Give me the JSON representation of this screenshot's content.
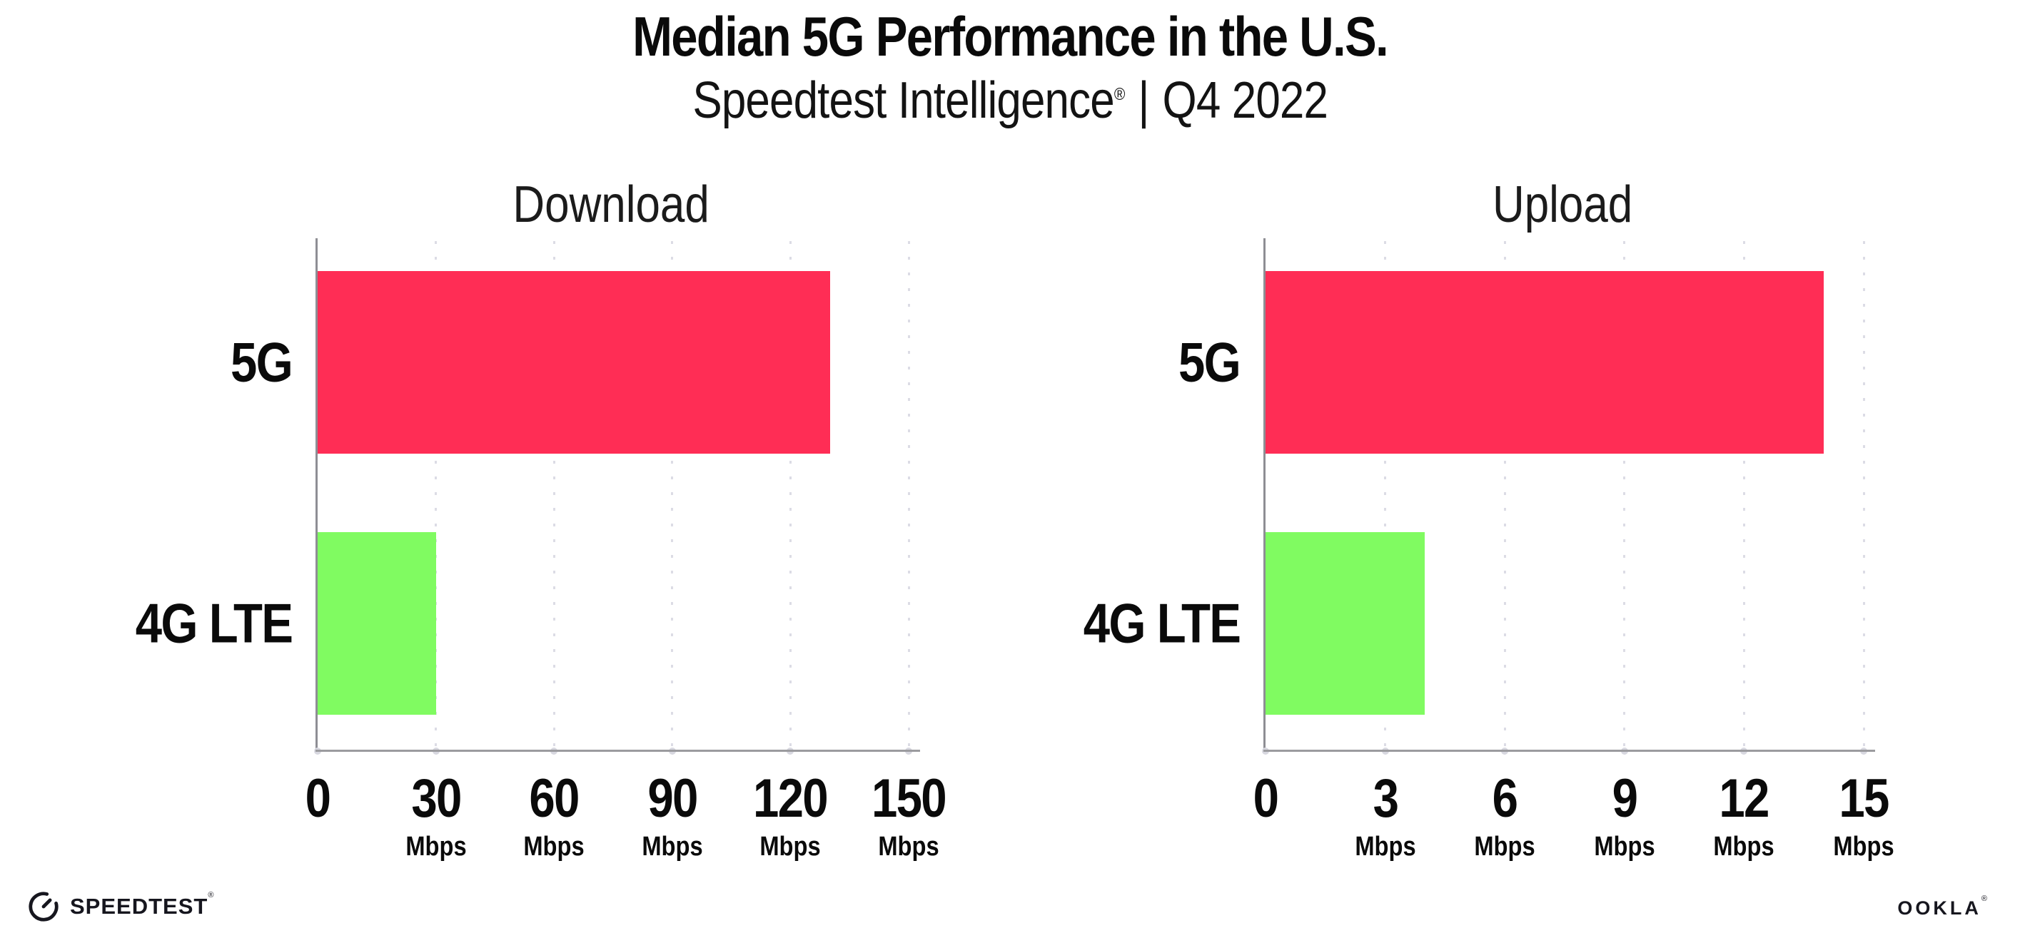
{
  "header": {
    "title": "Median 5G Performance in the U.S.",
    "subtitle": {
      "brand": "Speedtest Intelligence",
      "registered_mark": "®",
      "separator": "|",
      "period": "Q4 2022"
    }
  },
  "chart_data": [
    {
      "type": "bar",
      "orientation": "horizontal",
      "title": "Download",
      "categories": [
        "5G",
        "4G LTE"
      ],
      "values": [
        130,
        30
      ],
      "unit": "Mbps",
      "xlim": [
        0,
        150
      ],
      "xticks": [
        0,
        30,
        60,
        90,
        120,
        150
      ],
      "bar_colors": [
        "#FF2D55",
        "#80FB61"
      ],
      "grid": "vertical-dotted",
      "legend": "none"
    },
    {
      "type": "bar",
      "orientation": "horizontal",
      "title": "Upload",
      "categories": [
        "5G",
        "4G LTE"
      ],
      "values": [
        14,
        4
      ],
      "unit": "Mbps",
      "xlim": [
        0,
        15
      ],
      "xticks": [
        0,
        3,
        6,
        9,
        12,
        15
      ],
      "bar_colors": [
        "#FF2D55",
        "#80FB61"
      ],
      "grid": "vertical-dotted",
      "legend": "none"
    }
  ],
  "footer": {
    "speedtest": {
      "label": "SPEEDTEST",
      "mark": "®"
    },
    "ookla": {
      "label": "OOKLA",
      "mark": "®"
    }
  },
  "colors": {
    "bar_5g": "#FF2D55",
    "bar_4g_lte": "#80FB61",
    "axis_line": "#9B9B9F",
    "gridline_dots": "#DCDCE5",
    "text": "#0A0A0A"
  }
}
